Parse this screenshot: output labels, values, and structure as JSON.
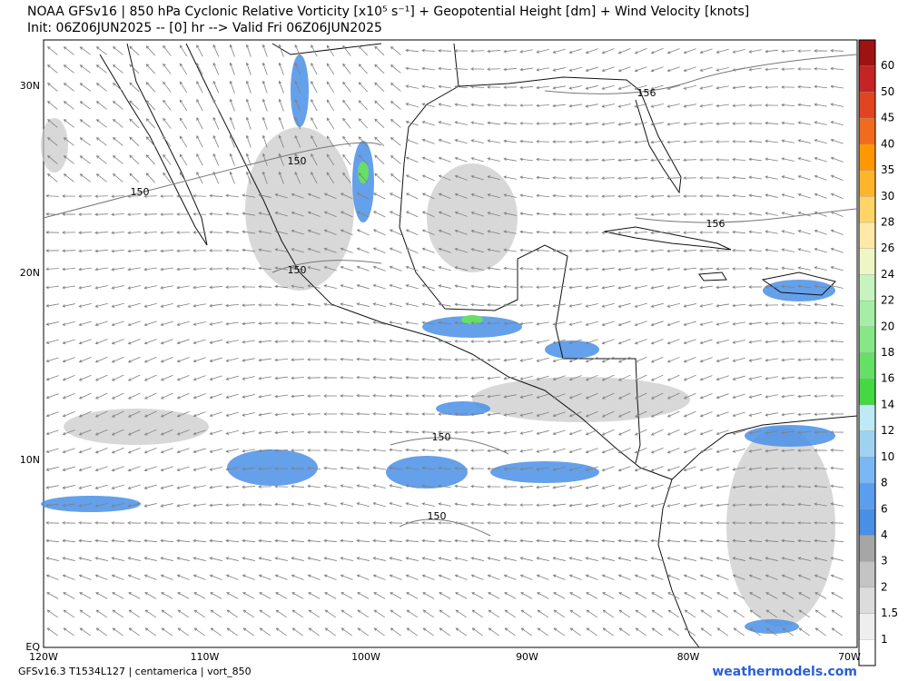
{
  "header": {
    "title": "NOAA GFSv16 | 850 hPa Cyclonic Relative Vorticity [x10⁵ s⁻¹] + Geopotential Height [dm] + Wind Velocity [knots]",
    "subtitle": "Init: 06Z06JUN2025 -- [0] hr --> Valid Fri 06Z06JUN2025"
  },
  "map": {
    "lat_labels": [
      "30N",
      "20N",
      "10N",
      "EQ"
    ],
    "lon_labels": [
      "120W",
      "110W",
      "100W",
      "90W",
      "80W",
      "70W"
    ],
    "contour_labels": [
      "150",
      "150",
      "150",
      "150",
      "150",
      "156",
      "156"
    ]
  },
  "colorbar": {
    "levels": [
      1,
      1.5,
      2,
      3,
      4,
      6,
      8,
      10,
      12,
      14,
      16,
      18,
      20,
      22,
      24,
      26,
      28,
      30,
      35,
      40,
      45,
      50,
      60
    ],
    "colors": [
      "#ffffff",
      "#eeeeee",
      "#dcdcdc",
      "#c4c4c4",
      "#a6a6a6",
      "#4a8fe6",
      "#5a9ef0",
      "#7ab8f4",
      "#9fd2f0",
      "#bdeaf4",
      "#44d844",
      "#66df66",
      "#86e786",
      "#a6eea6",
      "#c6f4c0",
      "#eef6c4",
      "#ffe9a6",
      "#ffd466",
      "#ffb52a",
      "#ff9800",
      "#f26a1e",
      "#e24420",
      "#c42424",
      "#9e1212"
    ]
  },
  "footer": {
    "left": "GFSv16.3 T1534L127 | centamerica | vort_850",
    "right": "weathermodels.com"
  }
}
